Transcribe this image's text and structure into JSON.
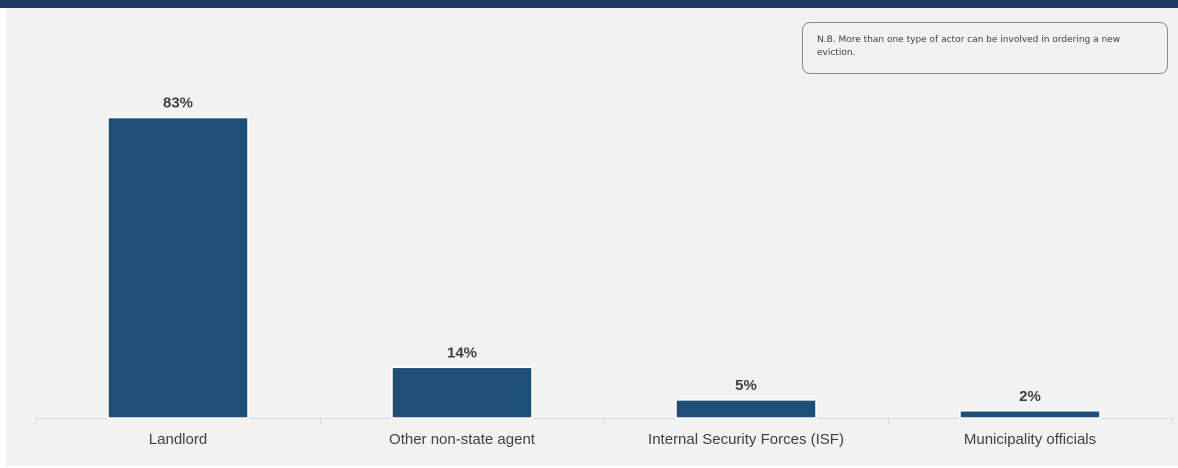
{
  "title": "",
  "note": "N.B. More than one type of actor can be involved in ordering a new eviction.",
  "colors": {
    "bar": "#1f4e79",
    "panel": "#f2f2f2",
    "title_bar": "#1f3864"
  },
  "chart_data": {
    "type": "bar",
    "categories": [
      "Landlord",
      "Other non-state agent",
      "Internal Security Forces (ISF)",
      "Municipality officials"
    ],
    "values": [
      83,
      14,
      5,
      2
    ],
    "value_labels": [
      "83%",
      "14%",
      "5%",
      "2%"
    ],
    "xlabel": "",
    "ylabel": "",
    "ylim": [
      0,
      100
    ],
    "grid": false,
    "legend": "none"
  }
}
